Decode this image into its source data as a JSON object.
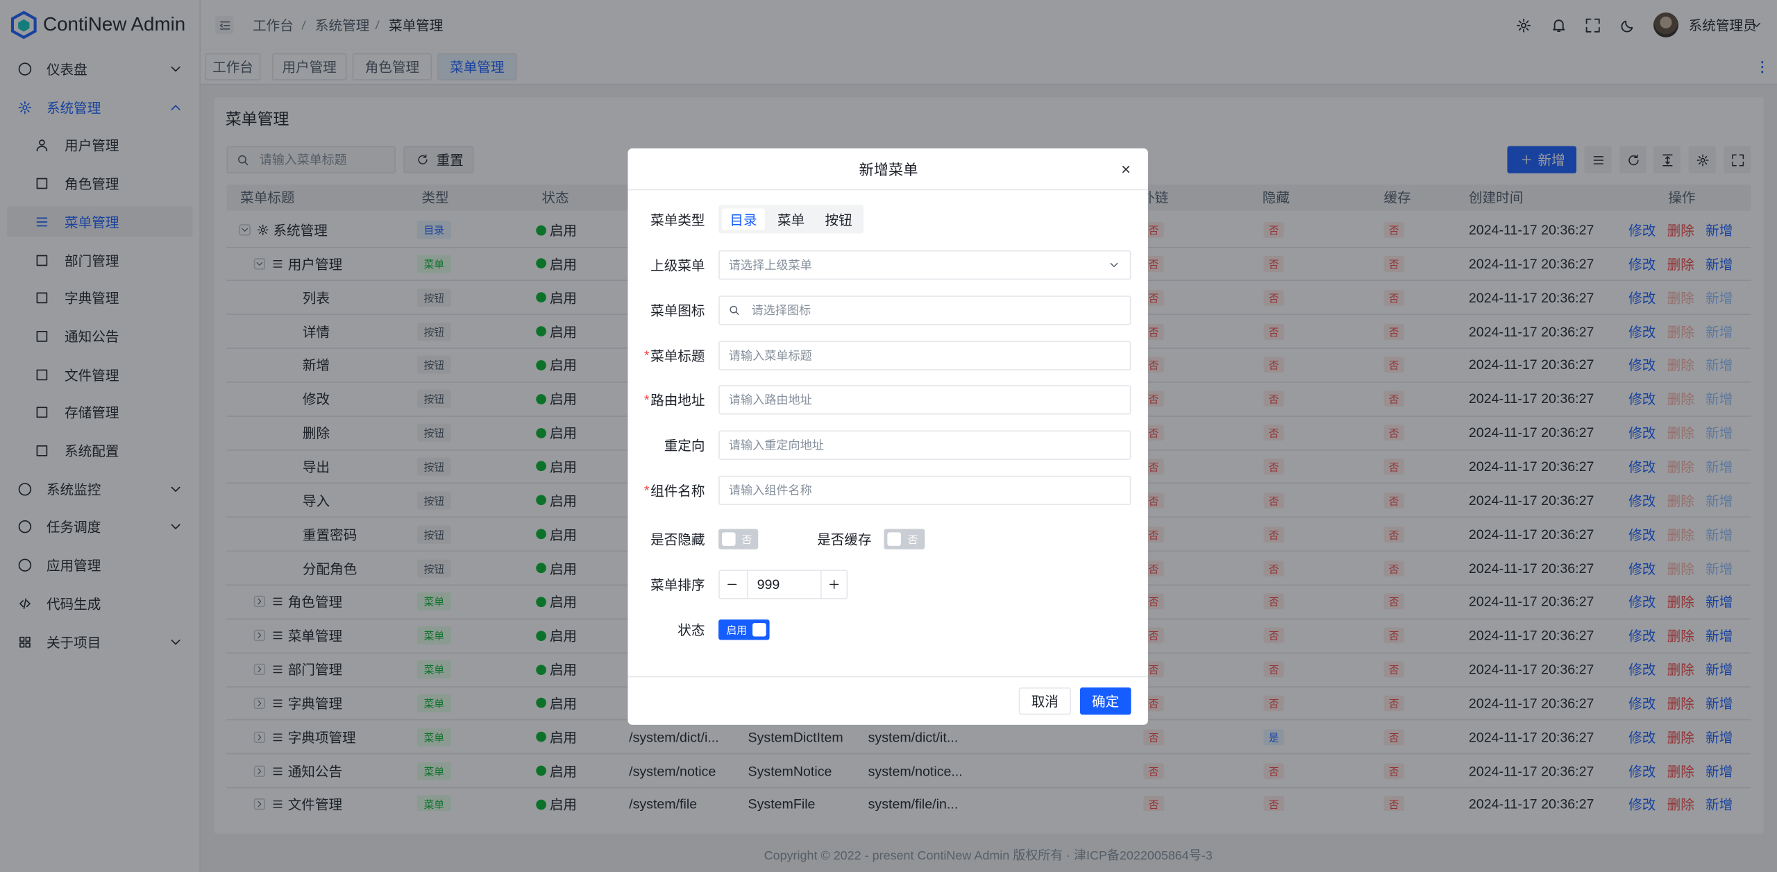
{
  "sidebar": {
    "logo": "ContiNew Admin",
    "menu": [
      {
        "label": "仪表盘",
        "expandable": true,
        "open": false
      },
      {
        "label": "系统管理",
        "expandable": true,
        "open": true,
        "active": true,
        "children": [
          {
            "label": "用户管理"
          },
          {
            "label": "角色管理"
          },
          {
            "label": "菜单管理",
            "selected": true
          },
          {
            "label": "部门管理"
          },
          {
            "label": "字典管理"
          },
          {
            "label": "通知公告"
          },
          {
            "label": "文件管理"
          },
          {
            "label": "存储管理"
          },
          {
            "label": "系统配置"
          }
        ]
      },
      {
        "label": "系统监控",
        "expandable": true,
        "open": false
      },
      {
        "label": "任务调度",
        "expandable": true,
        "open": false
      },
      {
        "label": "应用管理"
      },
      {
        "label": "代码生成"
      },
      {
        "label": "关于项目",
        "expandable": true,
        "open": false
      }
    ]
  },
  "header": {
    "breadcrumb": [
      "工作台",
      "系统管理",
      "菜单管理"
    ],
    "user": "系统管理员"
  },
  "tabs": [
    {
      "label": "工作台"
    },
    {
      "label": "用户管理"
    },
    {
      "label": "角色管理"
    },
    {
      "label": "菜单管理",
      "active": true
    }
  ],
  "page": {
    "title": "菜单管理",
    "search_placeholder": "请输入菜单标题",
    "reset": "重置",
    "add": "新增"
  },
  "table": {
    "columns": [
      "菜单标题",
      "类型",
      "状态",
      "外链",
      "隐藏",
      "缓存",
      "创建时间",
      "操作"
    ],
    "actions": [
      "修改",
      "删除",
      "新增"
    ],
    "type_styles": {
      "目录": {
        "color": "#165dff",
        "bg": "#e8f3ff",
        "dim": false
      },
      "菜单": {
        "color": "#00b42a",
        "bg": "#e8ffea",
        "dim": false
      },
      "按钮": {
        "color": "#4e5969",
        "bg": "#f2f3f5",
        "dim": true
      }
    },
    "flag_styles": {
      "否": {
        "color": "#f53f3f",
        "bg": "#ffece8"
      },
      "是": {
        "color": "#165dff",
        "bg": "#e8f3ff"
      }
    },
    "rows": [
      {
        "title": "系统管理",
        "level": 0,
        "expanded": true,
        "type": "目录",
        "status": "启用",
        "external": "否",
        "hidden": "否",
        "cache": "否",
        "created": "2024-11-17 20:36:27"
      },
      {
        "title": "用户管理",
        "level": 1,
        "expanded": true,
        "type": "菜单",
        "status": "启用",
        "external": "否",
        "hidden": "否",
        "cache": "否",
        "created": "2024-11-17 20:36:27"
      },
      {
        "title": "列表",
        "level": 2,
        "type": "按钮",
        "status": "启用",
        "external": "否",
        "hidden": "否",
        "cache": "否",
        "created": "2024-11-17 20:36:27"
      },
      {
        "title": "详情",
        "level": 2,
        "type": "按钮",
        "status": "启用",
        "external": "否",
        "hidden": "否",
        "cache": "否",
        "created": "2024-11-17 20:36:27"
      },
      {
        "title": "新增",
        "level": 2,
        "type": "按钮",
        "status": "启用",
        "external": "否",
        "hidden": "否",
        "cache": "否",
        "created": "2024-11-17 20:36:27"
      },
      {
        "title": "修改",
        "level": 2,
        "type": "按钮",
        "status": "启用",
        "external": "否",
        "hidden": "否",
        "cache": "否",
        "created": "2024-11-17 20:36:27"
      },
      {
        "title": "删除",
        "level": 2,
        "type": "按钮",
        "status": "启用",
        "external": "否",
        "hidden": "否",
        "cache": "否",
        "created": "2024-11-17 20:36:27"
      },
      {
        "title": "导出",
        "level": 2,
        "type": "按钮",
        "status": "启用",
        "external": "否",
        "hidden": "否",
        "cache": "否",
        "created": "2024-11-17 20:36:27"
      },
      {
        "title": "导入",
        "level": 2,
        "type": "按钮",
        "status": "启用",
        "external": "否",
        "hidden": "否",
        "cache": "否",
        "created": "2024-11-17 20:36:27"
      },
      {
        "title": "重置密码",
        "level": 2,
        "type": "按钮",
        "status": "启用",
        "external": "否",
        "hidden": "否",
        "cache": "否",
        "created": "2024-11-17 20:36:27"
      },
      {
        "title": "分配角色",
        "level": 2,
        "type": "按钮",
        "status": "启用",
        "external": "否",
        "hidden": "否",
        "cache": "否",
        "created": "2024-11-17 20:36:27"
      },
      {
        "title": "角色管理",
        "level": 1,
        "expanded": false,
        "type": "菜单",
        "status": "启用",
        "external": "否",
        "hidden": "否",
        "cache": "否",
        "created": "2024-11-17 20:36:27"
      },
      {
        "title": "菜单管理",
        "level": 1,
        "expanded": false,
        "type": "菜单",
        "status": "启用",
        "external": "否",
        "hidden": "否",
        "cache": "否",
        "created": "2024-11-17 20:36:27"
      },
      {
        "title": "部门管理",
        "level": 1,
        "expanded": false,
        "type": "菜单",
        "status": "启用",
        "external": "否",
        "hidden": "否",
        "cache": "否",
        "created": "2024-11-17 20:36:27"
      },
      {
        "title": "字典管理",
        "level": 1,
        "expanded": false,
        "type": "菜单",
        "status": "启用",
        "external": "否",
        "hidden": "否",
        "cache": "否",
        "created": "2024-11-17 20:36:27"
      },
      {
        "title": "字典项管理",
        "level": 1,
        "expanded": false,
        "type": "菜单",
        "status": "启用",
        "route": "/system/dict/i...",
        "component_name": "SystemDictItem",
        "component": "system/dict/it...",
        "external": "否",
        "hidden": "是",
        "cache": "否",
        "created": "2024-11-17 20:36:27"
      },
      {
        "title": "通知公告",
        "level": 1,
        "expanded": false,
        "type": "菜单",
        "status": "启用",
        "route": "/system/notice",
        "component_name": "SystemNotice",
        "component": "system/notice...",
        "external": "否",
        "hidden": "否",
        "cache": "否",
        "created": "2024-11-17 20:36:27"
      },
      {
        "title": "文件管理",
        "level": 1,
        "expanded": false,
        "type": "菜单",
        "status": "启用",
        "route": "/system/file",
        "component_name": "SystemFile",
        "component": "system/file/in...",
        "external": "否",
        "hidden": "否",
        "cache": "否",
        "created": "2024-11-17 20:36:27"
      }
    ]
  },
  "modal": {
    "title": "新增菜单",
    "required_mark": "*",
    "type_field": {
      "label": "菜单类型",
      "options": [
        {
          "label": "目录",
          "selected": true
        },
        {
          "label": "菜单"
        },
        {
          "label": "按钮"
        }
      ]
    },
    "fields": [
      {
        "label": "上级菜单",
        "placeholder": "请选择上级菜单",
        "kind": "select"
      },
      {
        "label": "菜单图标",
        "placeholder": "请选择图标",
        "kind": "icon"
      },
      {
        "label": "菜单标题",
        "placeholder": "请输入菜单标题",
        "required": true
      },
      {
        "label": "路由地址",
        "placeholder": "请输入路由地址",
        "required": true
      },
      {
        "label": "重定向",
        "placeholder": "请输入重定向地址"
      },
      {
        "label": "组件名称",
        "placeholder": "请输入组件名称",
        "required": true
      }
    ],
    "hidden_switch": {
      "label": "是否隐藏",
      "text": "否",
      "on": false
    },
    "cache_switch": {
      "label": "是否缓存",
      "text": "否",
      "on": false
    },
    "sort": {
      "label": "菜单排序",
      "value": 999
    },
    "status_switch": {
      "label": "状态",
      "text": "启用",
      "on": true
    },
    "cancel": "取消",
    "ok": "确定"
  },
  "footer": "Copyright © 2022 - present ContiNew Admin 版权所有 · 津ICP备2022005864号-3"
}
